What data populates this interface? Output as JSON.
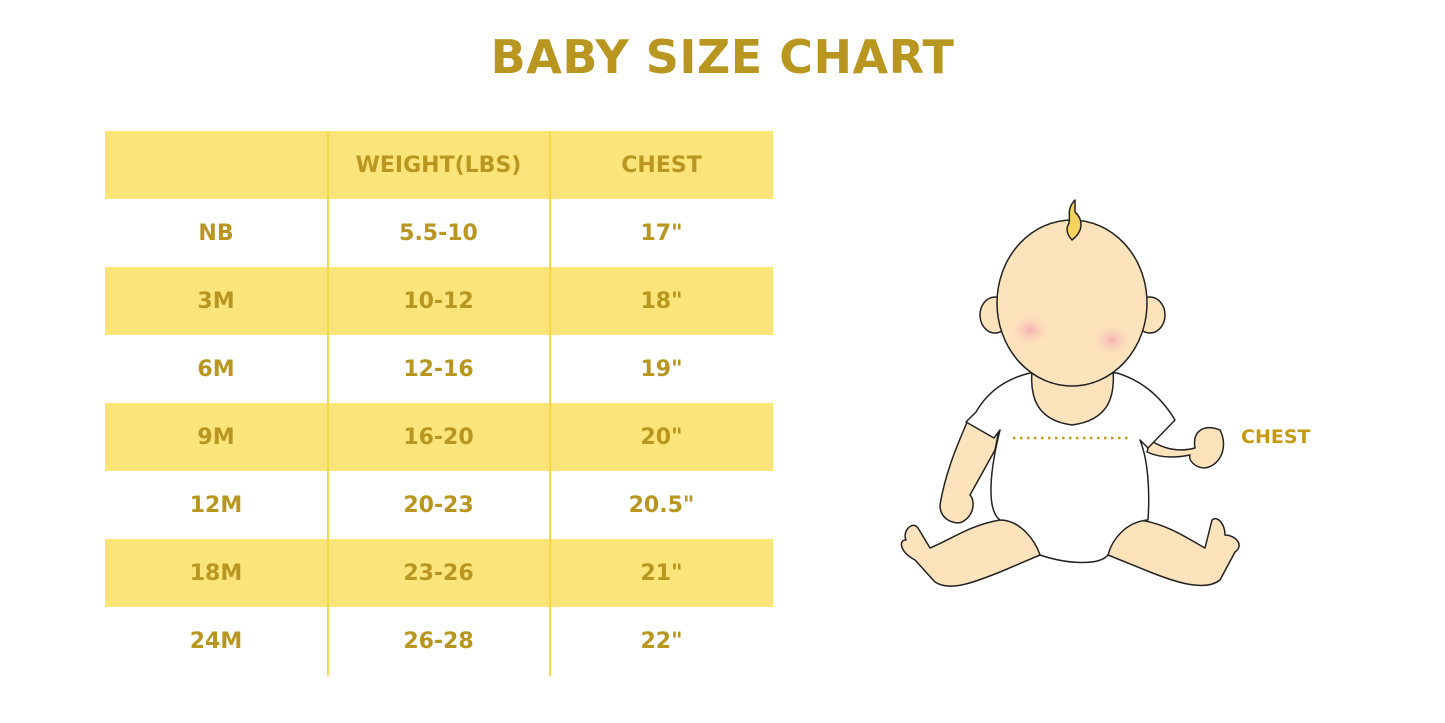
{
  "title": "BABY SIZE CHART",
  "table": {
    "headers": [
      "",
      "WEIGHT(LBS)",
      "CHEST"
    ],
    "rows": [
      [
        "NB",
        "5.5-10",
        "17\""
      ],
      [
        "3M",
        "10-12",
        "18\""
      ],
      [
        "6M",
        "12-16",
        "19\""
      ],
      [
        "9M",
        "16-20",
        "20\""
      ],
      [
        "12M",
        "20-23",
        "20.5\""
      ],
      [
        "18M",
        "23-26",
        "21\""
      ],
      [
        "24M",
        "26-28",
        "22\""
      ]
    ]
  },
  "illustration": {
    "chest_label": "CHEST"
  },
  "colors": {
    "accent_text": "#B8961F",
    "stripe": "#FBE57A",
    "skin": "#FDE3BC",
    "cheek": "#F6B3B8"
  }
}
